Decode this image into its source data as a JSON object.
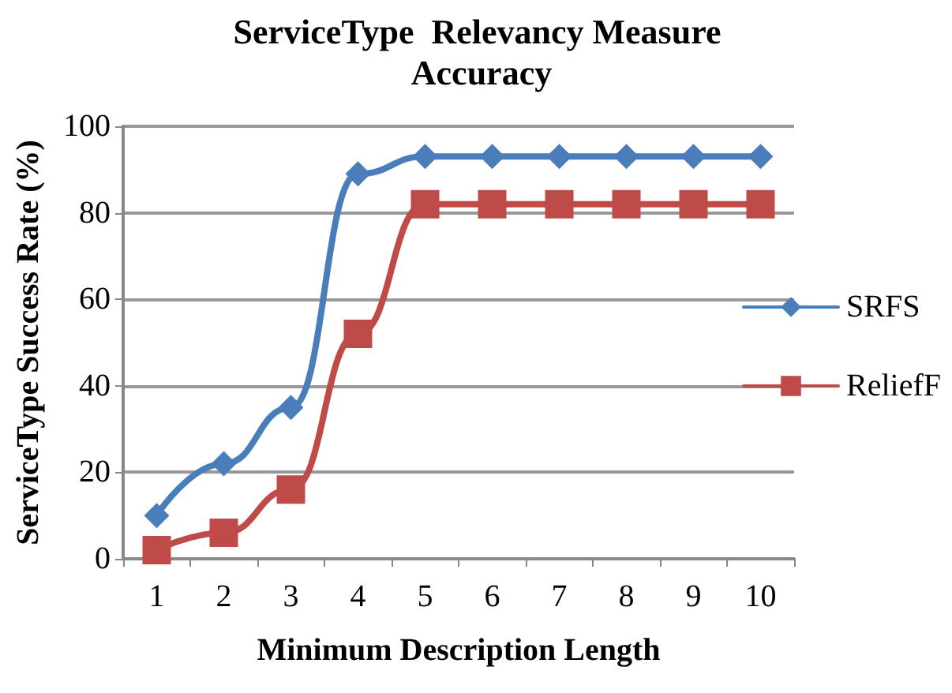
{
  "chart_data": {
    "type": "line",
    "title": "ServiceType  Relevancy Measure Accuracy",
    "xlabel": "Minimum Description Length",
    "ylabel": "ServiceType Success Rate (%)",
    "categories": [
      "1",
      "2",
      "3",
      "4",
      "5",
      "6",
      "7",
      "8",
      "9",
      "10"
    ],
    "series": [
      {
        "name": "SRFS",
        "color": "#4a7ebb",
        "marker": "diamond",
        "values": [
          10,
          22,
          35,
          89,
          93,
          93,
          93,
          93,
          93,
          93
        ]
      },
      {
        "name": "ReliefF",
        "color": "#be4b48",
        "marker": "square",
        "values": [
          2,
          6,
          16,
          52,
          82,
          82,
          82,
          82,
          82,
          82
        ]
      }
    ],
    "ylim": [
      0,
      100
    ],
    "yticks": [
      0,
      20,
      40,
      60,
      80,
      100
    ],
    "grid": "y",
    "legend": "right",
    "line_style": "solid"
  }
}
